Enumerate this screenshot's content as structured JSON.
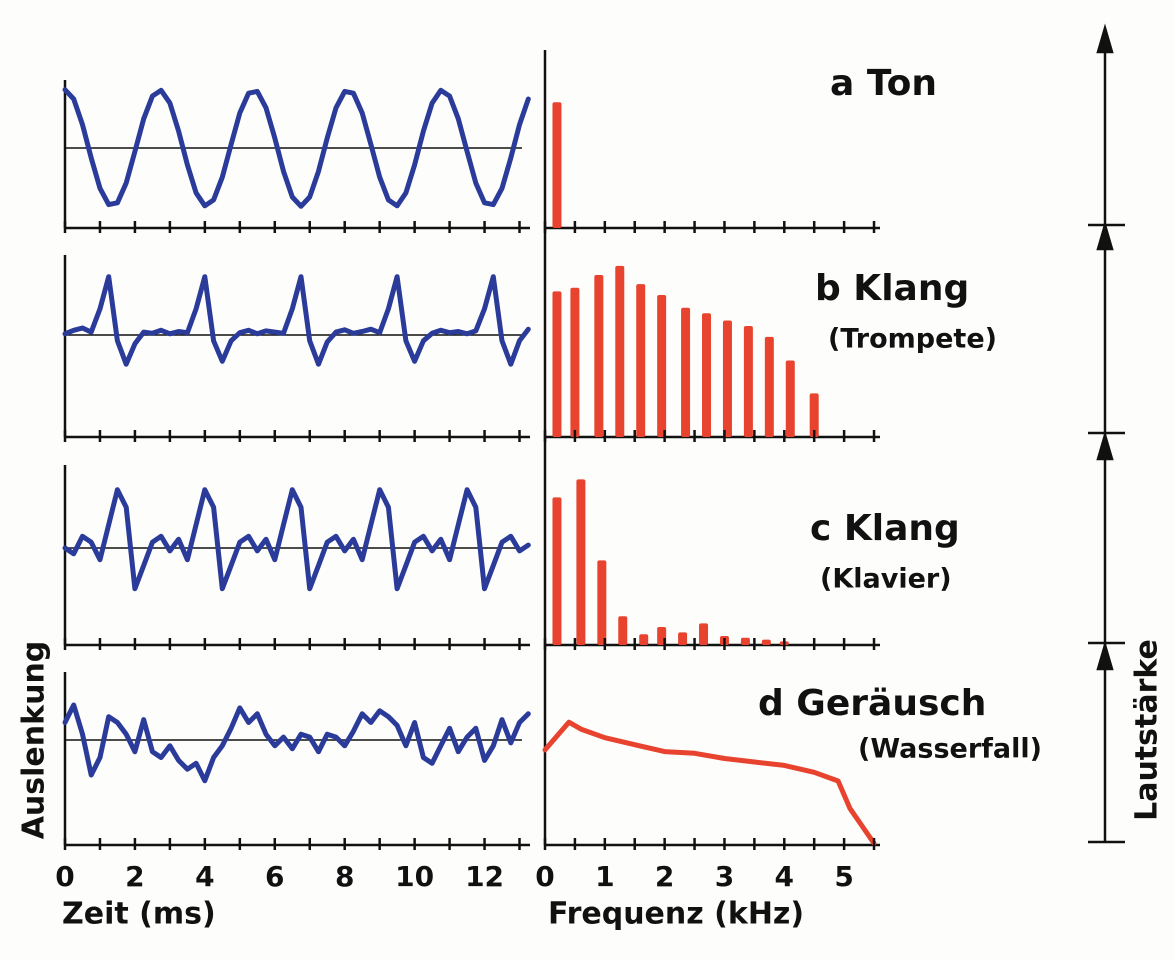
{
  "chart_data": [
    {
      "type": "line",
      "xlabel": "Zeit (ms)",
      "ylabel": "Auslenkung",
      "xlim": [
        0,
        13.3
      ],
      "xticks": [
        0,
        2,
        4,
        6,
        8,
        10,
        12
      ],
      "xminorticks": [
        1,
        3,
        5,
        7,
        9,
        11,
        13
      ],
      "ylim": [
        -1.2,
        1.2
      ],
      "x": [
        0,
        0.25,
        0.5,
        0.75,
        1,
        1.25,
        1.5,
        1.75,
        2,
        2.25,
        2.5,
        2.75,
        3,
        3.25,
        3.5,
        3.75,
        4,
        4.25,
        4.5,
        4.75,
        5,
        5.25,
        5.5,
        5.75,
        6,
        6.25,
        6.5,
        6.75,
        7,
        7.25,
        7.5,
        7.75,
        8,
        8.25,
        8.5,
        8.75,
        9,
        9.25,
        9.5,
        9.75,
        10,
        10.25,
        10.5,
        10.75,
        11,
        11.25,
        11.5,
        11.75,
        12,
        12.25,
        12.5,
        12.75,
        13,
        13.25
      ],
      "series": [
        {
          "color": "#2b3b9a",
          "values": [
            1,
            0.84,
            0.4,
            -0.17,
            -0.69,
            -0.97,
            -0.94,
            -0.6,
            -0.06,
            0.5,
            0.89,
            0.99,
            0.77,
            0.29,
            -0.29,
            -0.77,
            -0.99,
            -0.89,
            -0.5,
            0.06,
            0.6,
            0.94,
            0.97,
            0.69,
            0.17,
            -0.4,
            -0.84,
            -1,
            -0.84,
            -0.4,
            0.17,
            0.69,
            0.97,
            0.94,
            0.6,
            0.06,
            -0.5,
            -0.89,
            -0.99,
            -0.77,
            -0.29,
            0.29,
            0.77,
            0.99,
            0.89,
            0.5,
            -0.06,
            -0.6,
            -0.94,
            -0.97,
            -0.69,
            -0.17,
            0.4,
            0.84
          ]
        },
        {
          "color": "#2b3b9a",
          "values": [
            0.02,
            0.08,
            0.12,
            0.05,
            0.45,
            1,
            -0.1,
            -0.5,
            -0.15,
            0.05,
            0.03,
            0.08,
            0.02,
            0.06,
            0.04,
            0.45,
            1,
            -0.1,
            -0.45,
            -0.1,
            0.04,
            0.08,
            0.02,
            0.07,
            0.05,
            0.03,
            0.45,
            1,
            -0.1,
            -0.5,
            -0.12,
            0.05,
            0.09,
            0.03,
            0.06,
            0.1,
            0.04,
            0.45,
            1,
            -0.1,
            -0.45,
            -0.1,
            0.03,
            0.08,
            0.04,
            0.06,
            0.02,
            0.07,
            0.45,
            1,
            -0.1,
            -0.5,
            -0.1,
            0.1
          ]
        },
        {
          "color": "#2b3b9a",
          "values": [
            0,
            -0.1,
            0.2,
            0.1,
            -0.2,
            0.4,
            1,
            0.7,
            -0.7,
            -0.3,
            0.1,
            0.2,
            -0.05,
            0.15,
            -0.2,
            0.4,
            1,
            0.7,
            -0.7,
            -0.3,
            0.1,
            0.2,
            -0.05,
            0.15,
            -0.2,
            0.4,
            1,
            0.7,
            -0.7,
            -0.3,
            0.1,
            0.2,
            -0.05,
            0.15,
            -0.2,
            0.4,
            1,
            0.7,
            -0.7,
            -0.3,
            0.1,
            0.2,
            -0.05,
            0.15,
            -0.2,
            0.4,
            1,
            0.7,
            -0.7,
            -0.3,
            0.1,
            0.2,
            -0.05,
            0.05
          ]
        },
        {
          "color": "#2b3b9a",
          "values": [
            0.3,
            0.6,
            0.1,
            -0.6,
            -0.3,
            0.4,
            0.3,
            0.1,
            -0.2,
            0.35,
            -0.2,
            -0.3,
            -0.1,
            -0.35,
            -0.5,
            -0.4,
            -0.7,
            -0.3,
            -0.1,
            0.2,
            0.55,
            0.3,
            0.45,
            0.1,
            -0.1,
            0.05,
            -0.15,
            0.1,
            0.05,
            -0.2,
            0.1,
            0.05,
            -0.1,
            0.15,
            0.45,
            0.3,
            0.5,
            0.4,
            0.25,
            -0.1,
            0.3,
            -0.3,
            -0.4,
            -0.1,
            0.2,
            -0.2,
            0.05,
            0.2,
            -0.35,
            -0.1,
            0.35,
            -0.05,
            0.3,
            0.45
          ]
        }
      ]
    },
    {
      "type": "bar",
      "xlabel": "Frequenz (kHz)",
      "ylabel": "Lautstärke",
      "xlim": [
        0,
        5.6
      ],
      "xticks": [
        0,
        1,
        2,
        3,
        4,
        5
      ],
      "xminorticks": [
        0.5,
        1.5,
        2.5,
        3.5,
        4.5,
        5.5
      ],
      "ylim": [
        0,
        1
      ],
      "series": [
        {
          "type": "bar",
          "color": "#e8432f",
          "x": [
            0.2
          ],
          "values": [
            0.85
          ]
        },
        {
          "type": "bar",
          "color": "#e8432f",
          "x": [
            0.2,
            0.5,
            0.9,
            1.25,
            1.6,
            1.95,
            2.35,
            2.7,
            3.05,
            3.4,
            3.75,
            4.1,
            4.5
          ],
          "values": [
            0.8,
            0.82,
            0.89,
            0.94,
            0.84,
            0.78,
            0.71,
            0.68,
            0.64,
            0.61,
            0.55,
            0.42,
            0.24
          ]
        },
        {
          "type": "bar",
          "color": "#e8432f",
          "x": [
            0.2,
            0.6,
            0.95,
            1.3,
            1.65,
            1.95,
            2.3,
            2.65,
            3.0,
            3.35,
            3.7,
            4.0
          ],
          "values": [
            0.82,
            0.92,
            0.47,
            0.16,
            0.06,
            0.1,
            0.07,
            0.12,
            0.05,
            0.04,
            0.03,
            0.02
          ]
        },
        {
          "type": "line",
          "color": "#e8432f",
          "x": [
            0,
            0.2,
            0.4,
            0.6,
            1,
            1.5,
            2,
            2.5,
            3,
            3.5,
            4,
            4.5,
            4.9,
            5.1,
            5.3,
            5.5
          ],
          "values": [
            0.55,
            0.63,
            0.71,
            0.67,
            0.62,
            0.58,
            0.54,
            0.53,
            0.5,
            0.48,
            0.46,
            0.42,
            0.37,
            0.21,
            0.11,
            0.01
          ]
        }
      ]
    }
  ],
  "annotations": [
    {
      "text": "a Ton"
    },
    {
      "text": "b Klang",
      "sub": "(Trompete)"
    },
    {
      "text": "c Klang",
      "sub": "(Klavier)"
    },
    {
      "text": "d Geräusch",
      "sub": "(Wasserfall)"
    }
  ]
}
